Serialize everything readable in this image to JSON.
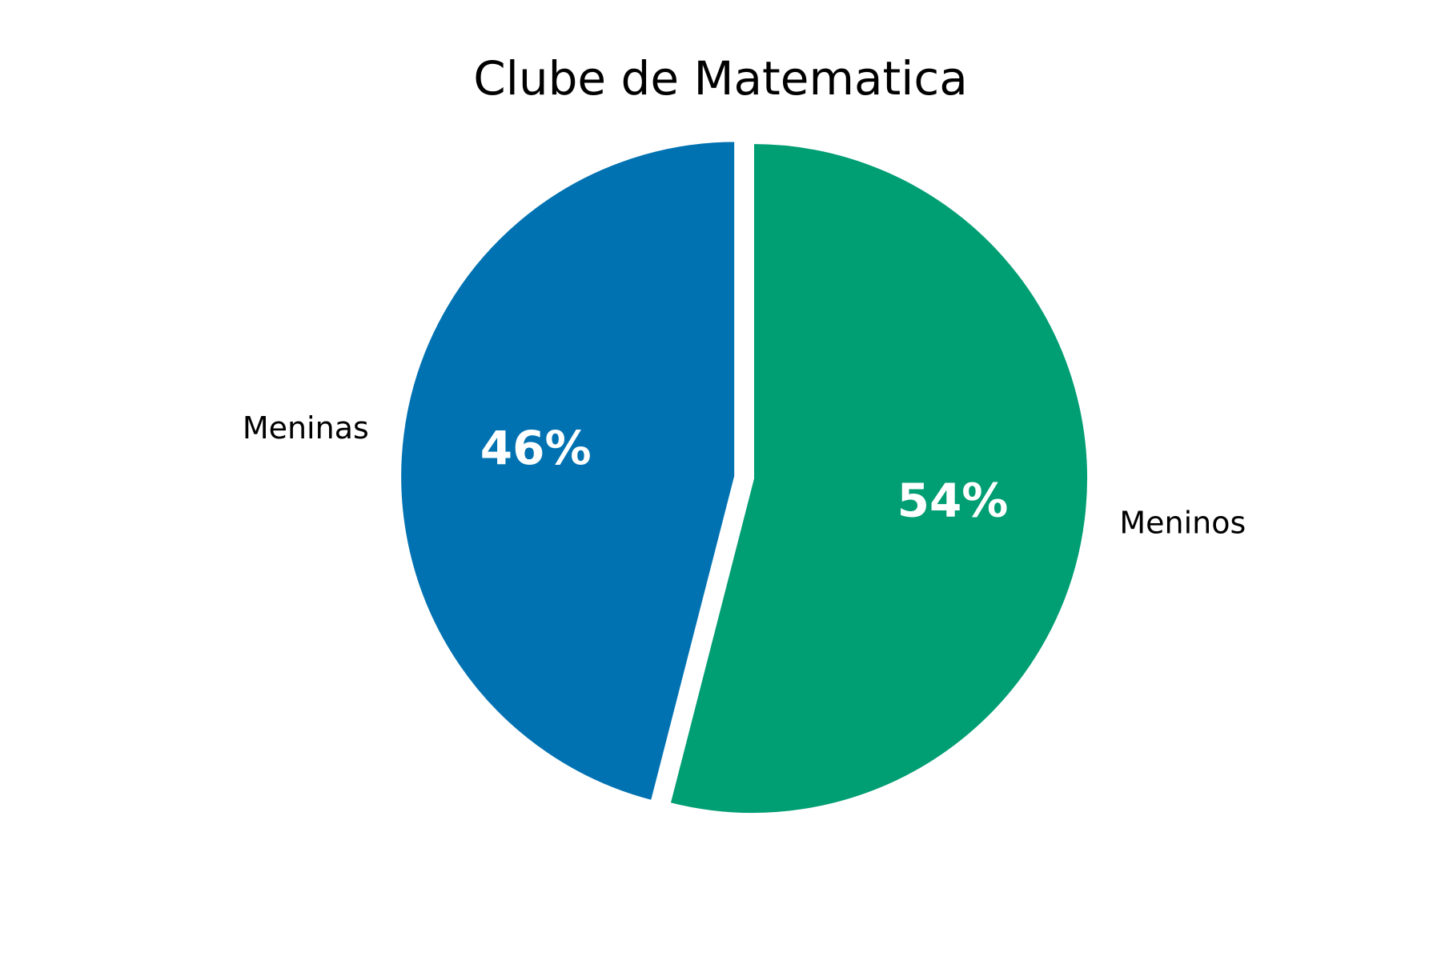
{
  "chart_data": {
    "type": "pie",
    "title": "Clube de Matematica",
    "slices": [
      {
        "label": "Meninas",
        "value": 46,
        "value_label": "46%",
        "color": "#0072B2"
      },
      {
        "label": "Meninos",
        "value": 54,
        "value_label": "54%",
        "color": "#009E73"
      }
    ],
    "start": "top",
    "direction": "counterclockwise",
    "exploded": "Meninas",
    "slice_edge_color": "#ffffff"
  }
}
